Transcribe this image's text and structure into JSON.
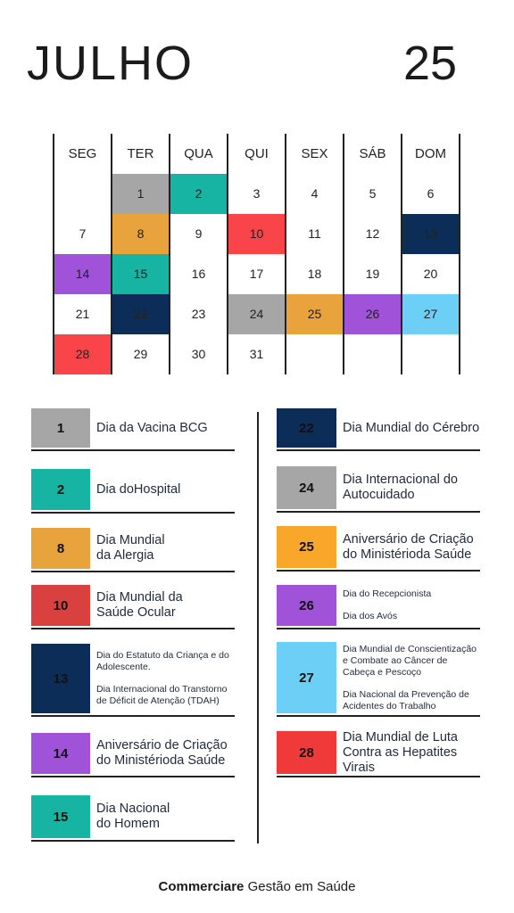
{
  "header": {
    "title": "JULHO",
    "year": "25"
  },
  "calendar": {
    "weekdays": [
      "SEG",
      "TER",
      "QUA",
      "QUI",
      "SEX",
      "SÁB",
      "DOM"
    ],
    "weeks": [
      [
        null,
        {
          "day": "1",
          "color": "#a6a6a6"
        },
        {
          "day": "2",
          "color": "#17b3a3"
        },
        {
          "day": "3"
        },
        {
          "day": "4"
        },
        {
          "day": "5"
        },
        {
          "day": "6"
        }
      ],
      [
        {
          "day": "7"
        },
        {
          "day": "8",
          "color": "#e8a33d"
        },
        {
          "day": "9"
        },
        {
          "day": "10",
          "color": "#f94449"
        },
        {
          "day": "11"
        },
        {
          "day": "12"
        },
        {
          "day": "13",
          "color": "#0c2d57"
        }
      ],
      [
        {
          "day": "14",
          "color": "#a052d8"
        },
        {
          "day": "15",
          "color": "#17b3a3"
        },
        {
          "day": "16"
        },
        {
          "day": "17"
        },
        {
          "day": "18"
        },
        {
          "day": "19"
        },
        {
          "day": "20"
        }
      ],
      [
        {
          "day": "21"
        },
        {
          "day": "22",
          "color": "#0c2d57"
        },
        {
          "day": "23"
        },
        {
          "day": "24",
          "color": "#a6a6a6"
        },
        {
          "day": "25",
          "color": "#e8a33d"
        },
        {
          "day": "26",
          "color": "#a052d8"
        },
        {
          "day": "27",
          "color": "#6ccff6"
        }
      ],
      [
        {
          "day": "28",
          "color": "#f94449"
        },
        {
          "day": "29"
        },
        {
          "day": "30"
        },
        {
          "day": "31"
        },
        null,
        null,
        null
      ]
    ]
  },
  "events_left": [
    {
      "label": "1",
      "color": "#a6a6a6",
      "paragraphs": [
        [
          "Dia da Vacina BCG"
        ]
      ]
    },
    {
      "label": "2",
      "color": "#17b3a3",
      "paragraphs": [
        [
          "Dia doHospital"
        ]
      ]
    },
    {
      "label": "8",
      "color": "#e8a33d",
      "paragraphs": [
        [
          "Dia Mundial",
          "da Alergia"
        ]
      ]
    },
    {
      "label": "10",
      "color": "#d94141",
      "paragraphs": [
        [
          "Dia Mundial da",
          "Saúde Ocular"
        ]
      ]
    },
    {
      "label": "13",
      "color": "#0c2d57",
      "small": true,
      "paragraphs": [
        [
          "Dia do Estatuto da Criança e do",
          "Adolescente."
        ],
        [
          "Dia Internacional do Transtorno",
          "de Déficit de Atenção (TDAH)"
        ]
      ]
    },
    {
      "label": "14",
      "color": "#a052d8",
      "paragraphs": [
        [
          "Aniversário de Criação",
          "do Ministérioda Saúde"
        ]
      ]
    },
    {
      "label": "15",
      "color": "#17b3a3",
      "paragraphs": [
        [
          "Dia Nacional",
          "do Homem"
        ]
      ]
    }
  ],
  "events_right": [
    {
      "label": "22",
      "color": "#0c2d57",
      "paragraphs": [
        [
          "Dia Mundial do Cérebro"
        ]
      ]
    },
    {
      "label": "24",
      "color": "#a6a6a6",
      "paragraphs": [
        [
          "Dia Internacional do",
          "Autocuidado"
        ]
      ]
    },
    {
      "label": "25",
      "color": "#f9a72b",
      "paragraphs": [
        [
          "Aniversário de Criação",
          "do Ministérioda Saúde"
        ]
      ]
    },
    {
      "label": "26",
      "color": "#a052d8",
      "small": true,
      "paragraphs": [
        [
          "Dia do Recepcionista"
        ],
        [
          "Dia dos Avós"
        ]
      ]
    },
    {
      "label": "27",
      "color": "#6ccff6",
      "small": true,
      "paragraphs": [
        [
          "Dia Mundial de Conscientização",
          "e Combate ao Câncer de",
          "Cabeça e Pescoço"
        ],
        [
          "Dia Nacional da Prevenção de",
          "Acidentes do Trabalho"
        ]
      ]
    },
    {
      "label": "28",
      "color": "#f03a3a",
      "paragraphs": [
        [
          "Dia Mundial de Luta",
          "Contra as Hepatites",
          "Virais"
        ]
      ]
    }
  ],
  "footer": {
    "brand": "Commerciare",
    "tagline": "Gestão em Saúde"
  }
}
